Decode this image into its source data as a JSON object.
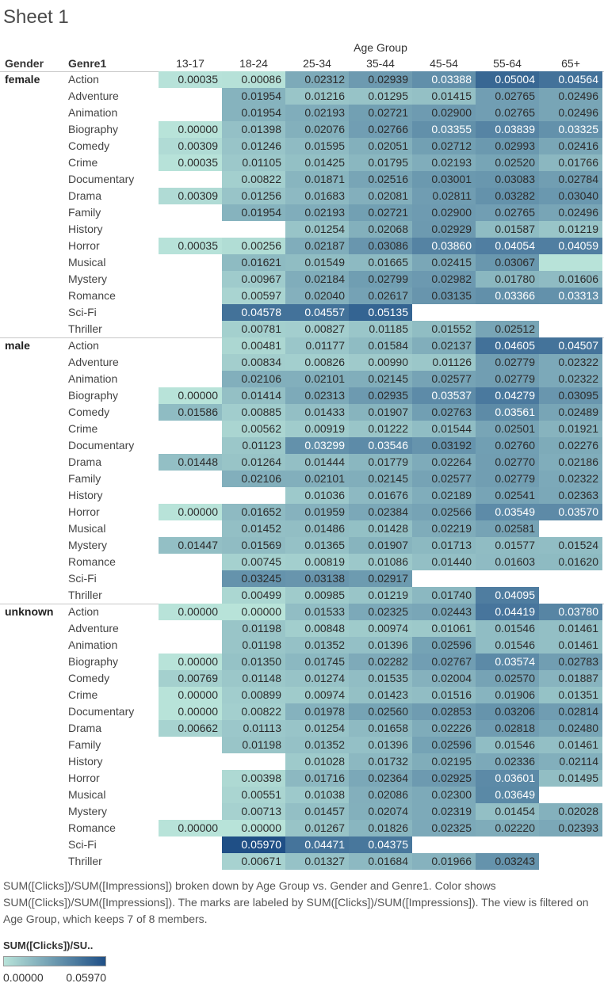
{
  "sheet_title": "Sheet 1",
  "column_group_label": "Age Group",
  "row_headers": [
    "Gender",
    "Genre1"
  ],
  "caption": "SUM([Clicks])/SUM([Impressions]) broken down by Age Group vs. Gender and Genre1.  Color shows SUM([Clicks])/SUM([Impressions]).  The marks are labeled by SUM([Clicks])/SUM([Impressions]). The view is filtered on Age Group, which keeps 7 of 8 members.",
  "legend": {
    "title": "SUM([Clicks])/SU..",
    "min_label": "0.00000",
    "max_label": "0.05970",
    "min_color": "#b8e3d9",
    "max_color": "#1f4f86"
  },
  "chart_data": {
    "type": "heatmap",
    "x": [
      "13-17",
      "18-24",
      "25-34",
      "35-44",
      "45-54",
      "55-64",
      "65+"
    ],
    "value_range": [
      0,
      0.0597
    ],
    "groups": [
      {
        "gender": "female",
        "rows": [
          {
            "genre": "Action",
            "values": [
              "0.00035",
              "0.00086",
              "0.02312",
              "0.02939",
              "0.03388",
              "0.05004",
              "0.04564"
            ]
          },
          {
            "genre": "Adventure",
            "values": [
              null,
              "0.01954",
              "0.01216",
              "0.01295",
              "0.01415",
              "0.02765",
              "0.02496"
            ]
          },
          {
            "genre": "Animation",
            "values": [
              null,
              "0.01954",
              "0.02193",
              "0.02721",
              "0.02900",
              "0.02765",
              "0.02496"
            ]
          },
          {
            "genre": "Biography",
            "values": [
              "0.00000",
              "0.01398",
              "0.02076",
              "0.02766",
              "0.03355",
              "0.03839",
              "0.03325"
            ]
          },
          {
            "genre": "Comedy",
            "values": [
              "0.00309",
              "0.01246",
              "0.01595",
              "0.02051",
              "0.02712",
              "0.02993",
              "0.02416"
            ]
          },
          {
            "genre": "Crime",
            "values": [
              "0.00035",
              "0.01105",
              "0.01425",
              "0.01795",
              "0.02193",
              "0.02520",
              "0.01766"
            ]
          },
          {
            "genre": "Documentary",
            "values": [
              null,
              "0.00822",
              "0.01871",
              "0.02516",
              "0.03001",
              "0.03083",
              "0.02784"
            ]
          },
          {
            "genre": "Drama",
            "values": [
              "0.00309",
              "0.01256",
              "0.01683",
              "0.02081",
              "0.02811",
              "0.03282",
              "0.03040"
            ]
          },
          {
            "genre": "Family",
            "values": [
              null,
              "0.01954",
              "0.02193",
              "0.02721",
              "0.02900",
              "0.02765",
              "0.02496"
            ]
          },
          {
            "genre": "History",
            "values": [
              null,
              null,
              "0.01254",
              "0.02068",
              "0.02929",
              "0.01587",
              "0.01219"
            ]
          },
          {
            "genre": "Horror",
            "values": [
              "0.00035",
              "0.00256",
              "0.02187",
              "0.03086",
              "0.03860",
              "0.04054",
              "0.04059"
            ]
          },
          {
            "genre": "Musical",
            "values": [
              null,
              "0.01621",
              "0.01549",
              "0.01665",
              "0.02415",
              "0.03067",
              ""
            ]
          },
          {
            "genre": "Mystery",
            "values": [
              null,
              "0.00967",
              "0.02184",
              "0.02799",
              "0.02982",
              "0.01780",
              "0.01606"
            ]
          },
          {
            "genre": "Romance",
            "values": [
              null,
              "0.00597",
              "0.02040",
              "0.02617",
              "0.03135",
              "0.03366",
              "0.03313"
            ]
          },
          {
            "genre": "Sci-Fi",
            "values": [
              null,
              "0.04578",
              "0.04557",
              "0.05135",
              null,
              null,
              null
            ]
          },
          {
            "genre": "Thriller",
            "values": [
              null,
              "0.00781",
              "0.00827",
              "0.01185",
              "0.01552",
              "0.02512",
              null
            ]
          }
        ]
      },
      {
        "gender": "male",
        "rows": [
          {
            "genre": "Action",
            "values": [
              null,
              "0.00481",
              "0.01177",
              "0.01584",
              "0.02137",
              "0.04605",
              "0.04507"
            ]
          },
          {
            "genre": "Adventure",
            "values": [
              null,
              "0.00834",
              "0.00826",
              "0.00990",
              "0.01126",
              "0.02779",
              "0.02322"
            ]
          },
          {
            "genre": "Animation",
            "values": [
              null,
              "0.02106",
              "0.02101",
              "0.02145",
              "0.02577",
              "0.02779",
              "0.02322"
            ]
          },
          {
            "genre": "Biography",
            "values": [
              "0.00000",
              "0.01414",
              "0.02313",
              "0.02935",
              "0.03537",
              "0.04279",
              "0.03095"
            ]
          },
          {
            "genre": "Comedy",
            "values": [
              "0.01586",
              "0.00885",
              "0.01433",
              "0.01907",
              "0.02763",
              "0.03561",
              "0.02489"
            ]
          },
          {
            "genre": "Crime",
            "values": [
              null,
              "0.00562",
              "0.00919",
              "0.01222",
              "0.01544",
              "0.02501",
              "0.01921"
            ]
          },
          {
            "genre": "Documentary",
            "values": [
              null,
              "0.01123",
              "0.03299",
              "0.03546",
              "0.03192",
              "0.02760",
              "0.02276"
            ]
          },
          {
            "genre": "Drama",
            "values": [
              "0.01448",
              "0.01264",
              "0.01444",
              "0.01779",
              "0.02264",
              "0.02770",
              "0.02186"
            ]
          },
          {
            "genre": "Family",
            "values": [
              null,
              "0.02106",
              "0.02101",
              "0.02145",
              "0.02577",
              "0.02779",
              "0.02322"
            ]
          },
          {
            "genre": "History",
            "values": [
              null,
              null,
              "0.01036",
              "0.01676",
              "0.02189",
              "0.02541",
              "0.02363"
            ]
          },
          {
            "genre": "Horror",
            "values": [
              "0.00000",
              "0.01652",
              "0.01959",
              "0.02384",
              "0.02566",
              "0.03549",
              "0.03570"
            ]
          },
          {
            "genre": "Musical",
            "values": [
              null,
              "0.01452",
              "0.01486",
              "0.01428",
              "0.02219",
              "0.02581",
              null
            ]
          },
          {
            "genre": "Mystery",
            "values": [
              "0.01447",
              "0.01569",
              "0.01365",
              "0.01907",
              "0.01713",
              "0.01577",
              "0.01524"
            ]
          },
          {
            "genre": "Romance",
            "values": [
              null,
              "0.00745",
              "0.00819",
              "0.01086",
              "0.01440",
              "0.01603",
              "0.01620"
            ]
          },
          {
            "genre": "Sci-Fi",
            "values": [
              null,
              "0.03245",
              "0.03138",
              "0.02917",
              null,
              null,
              null
            ]
          },
          {
            "genre": "Thriller",
            "values": [
              null,
              "0.00499",
              "0.00985",
              "0.01219",
              "0.01740",
              "0.04095",
              null
            ]
          }
        ]
      },
      {
        "gender": "unknown",
        "rows": [
          {
            "genre": "Action",
            "values": [
              "0.00000",
              "0.00000",
              "0.01533",
              "0.02325",
              "0.02443",
              "0.04419",
              "0.03780"
            ]
          },
          {
            "genre": "Adventure",
            "values": [
              null,
              "0.01198",
              "0.00848",
              "0.00974",
              "0.01061",
              "0.01546",
              "0.01461"
            ]
          },
          {
            "genre": "Animation",
            "values": [
              null,
              "0.01198",
              "0.01352",
              "0.01396",
              "0.02596",
              "0.01546",
              "0.01461"
            ]
          },
          {
            "genre": "Biography",
            "values": [
              "0.00000",
              "0.01350",
              "0.01745",
              "0.02282",
              "0.02767",
              "0.03574",
              "0.02783"
            ]
          },
          {
            "genre": "Comedy",
            "values": [
              "0.00769",
              "0.01148",
              "0.01274",
              "0.01535",
              "0.02004",
              "0.02570",
              "0.01887"
            ]
          },
          {
            "genre": "Crime",
            "values": [
              "0.00000",
              "0.00899",
              "0.00974",
              "0.01423",
              "0.01516",
              "0.01906",
              "0.01351"
            ]
          },
          {
            "genre": "Documentary",
            "values": [
              "0.00000",
              "0.00822",
              "0.01978",
              "0.02560",
              "0.02853",
              "0.03206",
              "0.02814"
            ]
          },
          {
            "genre": "Drama",
            "values": [
              "0.00662",
              "0.01113",
              "0.01254",
              "0.01658",
              "0.02226",
              "0.02818",
              "0.02480"
            ]
          },
          {
            "genre": "Family",
            "values": [
              null,
              "0.01198",
              "0.01352",
              "0.01396",
              "0.02596",
              "0.01546",
              "0.01461"
            ]
          },
          {
            "genre": "History",
            "values": [
              null,
              null,
              "0.01028",
              "0.01732",
              "0.02195",
              "0.02336",
              "0.02114"
            ]
          },
          {
            "genre": "Horror",
            "values": [
              null,
              "0.00398",
              "0.01716",
              "0.02364",
              "0.02925",
              "0.03601",
              "0.01495"
            ]
          },
          {
            "genre": "Musical",
            "values": [
              null,
              "0.00551",
              "0.01038",
              "0.02086",
              "0.02300",
              "0.03649",
              null
            ]
          },
          {
            "genre": "Mystery",
            "values": [
              null,
              "0.00713",
              "0.01457",
              "0.02074",
              "0.02319",
              "0.01454",
              "0.02028"
            ]
          },
          {
            "genre": "Romance",
            "values": [
              "0.00000",
              "0.00000",
              "0.01267",
              "0.01826",
              "0.02325",
              "0.02220",
              "0.02393"
            ]
          },
          {
            "genre": "Sci-Fi",
            "values": [
              null,
              "0.05970",
              "0.04471",
              "0.04375",
              null,
              null,
              null
            ]
          },
          {
            "genre": "Thriller",
            "values": [
              null,
              "0.00671",
              "0.01327",
              "0.01684",
              "0.01966",
              "0.03243",
              null
            ]
          }
        ]
      }
    ]
  }
}
